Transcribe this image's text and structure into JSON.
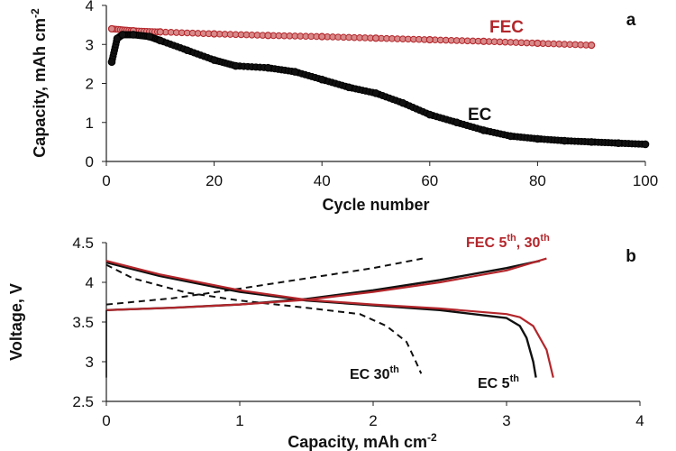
{
  "colors": {
    "fec": "#b3262b",
    "ec": "#111111"
  },
  "chart_data": [
    {
      "type": "scatter",
      "panel_label": "a",
      "xlabel": "Cycle number",
      "ylabel": "Capacity, mAh cm",
      "ylabel_sup": "-2",
      "xlim": [
        0,
        100
      ],
      "ylim": [
        0,
        4
      ],
      "xticks": [
        "0",
        "20",
        "40",
        "60",
        "80",
        "100"
      ],
      "yticks": [
        "0",
        "1",
        "2",
        "3",
        "4"
      ],
      "grid": false,
      "series": [
        {
          "name": "FEC",
          "x": [
            1,
            5,
            10,
            20,
            30,
            40,
            50,
            60,
            70,
            80,
            90
          ],
          "y": [
            3.4,
            3.35,
            3.32,
            3.27,
            3.23,
            3.2,
            3.16,
            3.12,
            3.08,
            3.03,
            2.98
          ]
        },
        {
          "name": "EC",
          "x": [
            1,
            2,
            3,
            5,
            8,
            10,
            15,
            20,
            24,
            30,
            35,
            40,
            45,
            50,
            55,
            60,
            65,
            70,
            75,
            80,
            85,
            90,
            95,
            100
          ],
          "y": [
            2.55,
            3.15,
            3.25,
            3.25,
            3.2,
            3.1,
            2.85,
            2.6,
            2.45,
            2.4,
            2.3,
            2.1,
            1.9,
            1.75,
            1.5,
            1.2,
            1.0,
            0.8,
            0.65,
            0.58,
            0.53,
            0.5,
            0.47,
            0.44
          ]
        }
      ]
    },
    {
      "type": "line",
      "panel_label": "b",
      "xlabel": "Capacity, mAh cm",
      "xlabel_sup": "-2",
      "ylabel": "Voltage, V",
      "xlim": [
        0,
        4
      ],
      "ylim": [
        2.5,
        4.5
      ],
      "xticks": [
        "0",
        "1",
        "2",
        "3",
        "4"
      ],
      "yticks": [
        "2.5",
        "3",
        "3.5",
        "4",
        "4.5"
      ],
      "grid": false,
      "annotations": {
        "fec": {
          "base": "FEC 5",
          "sup1": "th",
          "mid": ", 30",
          "sup2": "th"
        },
        "ec30": {
          "base": "EC 30",
          "sup": "th"
        },
        "ec5": {
          "base": "EC 5",
          "sup": "th"
        }
      },
      "series": [
        {
          "name": "FEC 5th/30th charge",
          "x": [
            0,
            0.5,
            1,
            1.5,
            2,
            2.5,
            3,
            3.3
          ],
          "y": [
            3.65,
            3.68,
            3.72,
            3.78,
            3.88,
            4.0,
            4.15,
            4.3
          ]
        },
        {
          "name": "FEC 5th/30th discharge",
          "x": [
            0,
            0.4,
            1,
            1.5,
            2,
            2.5,
            3,
            3.1,
            3.2,
            3.3,
            3.35
          ],
          "y": [
            4.27,
            4.1,
            3.9,
            3.78,
            3.72,
            3.67,
            3.6,
            3.56,
            3.45,
            3.15,
            2.8
          ]
        },
        {
          "name": "EC 5th charge",
          "x": [
            0,
            0.5,
            1,
            1.5,
            2,
            2.5,
            3,
            3.25
          ],
          "y": [
            3.65,
            3.68,
            3.72,
            3.79,
            3.9,
            4.03,
            4.18,
            4.27
          ]
        },
        {
          "name": "EC 5th discharge",
          "x": [
            0,
            0.4,
            1,
            1.5,
            2,
            2.5,
            3,
            3.1,
            3.15,
            3.2,
            3.22
          ],
          "y": [
            4.25,
            4.08,
            3.88,
            3.77,
            3.71,
            3.65,
            3.55,
            3.45,
            3.3,
            3.0,
            2.8
          ]
        },
        {
          "name": "EC 30th charge",
          "x": [
            0,
            0.5,
            1,
            1.5,
            2,
            2.37
          ],
          "y": [
            3.72,
            3.8,
            3.92,
            4.05,
            4.18,
            4.3
          ]
        },
        {
          "name": "EC 30th discharge",
          "x": [
            0,
            0.2,
            0.6,
            1,
            1.5,
            1.9,
            2.1,
            2.25,
            2.32,
            2.36
          ],
          "y": [
            4.22,
            4.05,
            3.87,
            3.77,
            3.68,
            3.6,
            3.45,
            3.25,
            3.0,
            2.85
          ]
        }
      ]
    }
  ]
}
